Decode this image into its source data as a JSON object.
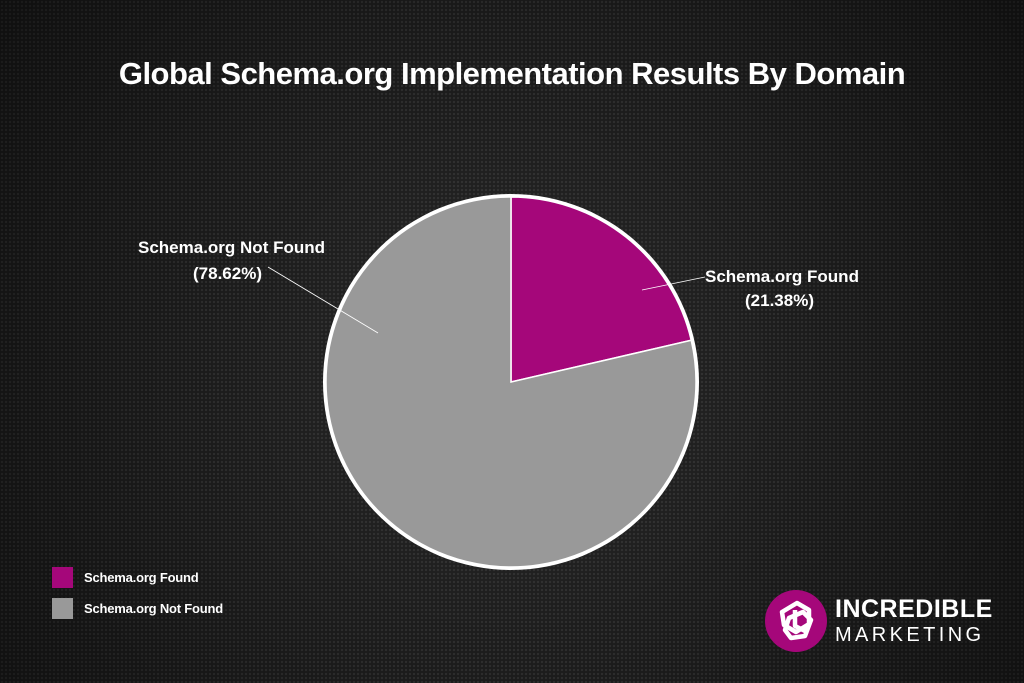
{
  "chart_data": {
    "type": "pie",
    "title": "Global Schema.org Implementation Results By Domain",
    "slices": [
      {
        "name": "Schema.org Found",
        "value": 21.38,
        "percent_label": "(21.38%)",
        "color": "#a5077a"
      },
      {
        "name": "Schema.org Not Found",
        "value": 78.62,
        "percent_label": "(78.62%)",
        "color": "#999999"
      }
    ],
    "legend": [
      "Schema.org Found",
      "Schema.org Not Found"
    ],
    "legend_placement": "bottom-left",
    "slice_border_color": "#ffffff"
  },
  "branding": {
    "line1": "INCREDIBLE",
    "line2": "MARKETING",
    "logo_icon": "incredible-marketing-logo",
    "logo_color": "#a5077a"
  }
}
